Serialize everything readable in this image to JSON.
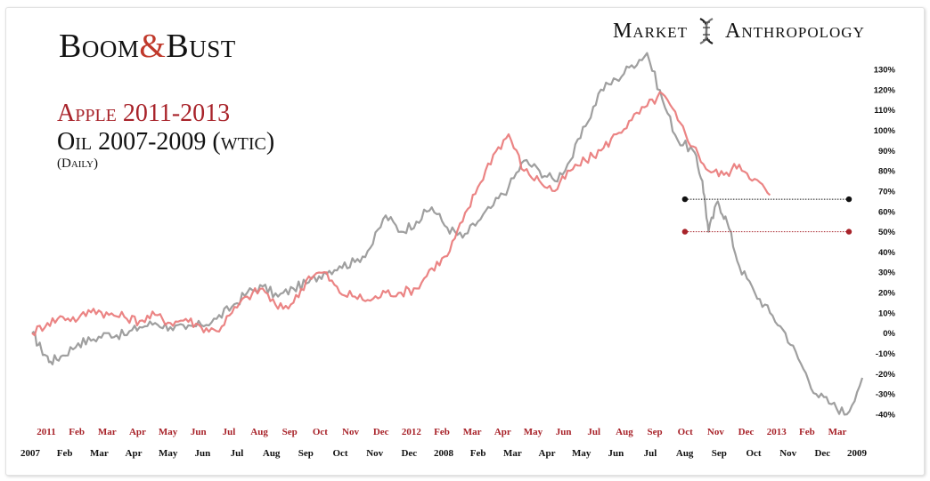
{
  "header": {
    "title_part1": "Boom",
    "title_amp": "&",
    "title_part2": "Bust",
    "brand_left": "Market",
    "brand_right": "Anthropology",
    "brand_icon": "dna-helix-icon",
    "line1": "Apple 2011-2013",
    "line2": "Oil 2007-2009 (wtic)",
    "line3": "(Daily)"
  },
  "chart_data": {
    "type": "line",
    "y_axis": {
      "ylim": [
        -40,
        130
      ],
      "unit": "%",
      "ticks": [
        "130%",
        "120%",
        "110%",
        "100%",
        "90%",
        "80%",
        "70%",
        "60%",
        "50%",
        "40%",
        "30%",
        "20%",
        "10%",
        "0%",
        "-10%",
        "-20%",
        "-30%",
        "-40%"
      ],
      "side": "right"
    },
    "x_axis_apple": [
      "2011",
      "Feb",
      "Mar",
      "Apr",
      "May",
      "Jun",
      "Jul",
      "Aug",
      "Sep",
      "Oct",
      "Nov",
      "Dec",
      "2012",
      "Feb",
      "Mar",
      "Apr",
      "May",
      "Jun",
      "Jul",
      "Aug",
      "Sep",
      "Oct",
      "Nov",
      "Dec",
      "2013",
      "Feb",
      "Mar"
    ],
    "x_axis_oil": [
      "2007",
      "Feb",
      "Mar",
      "Apr",
      "May",
      "Jun",
      "Jul",
      "Aug",
      "Sep",
      "Oct",
      "Nov",
      "Dec",
      "2008",
      "Feb",
      "Mar",
      "Apr",
      "May",
      "Jun",
      "Jul",
      "Aug",
      "Sep",
      "Oct",
      "Nov",
      "Dec",
      "2009"
    ],
    "series": [
      {
        "color": "#9a9a9a",
        "points": [
          [
            0,
            0
          ],
          [
            0.3,
            -8
          ],
          [
            0.6,
            -14
          ],
          [
            1,
            -11
          ],
          [
            1.5,
            -5
          ],
          [
            2,
            -3
          ],
          [
            2.5,
            0
          ],
          [
            3,
            -1
          ],
          [
            3.5,
            3
          ],
          [
            4,
            5
          ],
          [
            4.5,
            3
          ],
          [
            5,
            2
          ],
          [
            5.5,
            4
          ],
          [
            6,
            7
          ],
          [
            6.5,
            13
          ],
          [
            7,
            20
          ],
          [
            7.5,
            23
          ],
          [
            8,
            18
          ],
          [
            8.5,
            22
          ],
          [
            9,
            25
          ],
          [
            9.5,
            30
          ],
          [
            10,
            33
          ],
          [
            10.5,
            35
          ],
          [
            11,
            42
          ],
          [
            11.5,
            58
          ],
          [
            12,
            50
          ],
          [
            12.5,
            55
          ],
          [
            13,
            62
          ],
          [
            13.5,
            52
          ],
          [
            14,
            47
          ],
          [
            14.5,
            55
          ],
          [
            15,
            63
          ],
          [
            15.5,
            72
          ],
          [
            16,
            85
          ],
          [
            16.5,
            80
          ],
          [
            17,
            75
          ],
          [
            17.5,
            85
          ],
          [
            18,
            102
          ],
          [
            18.5,
            120
          ],
          [
            19,
            125
          ],
          [
            19.5,
            132
          ],
          [
            20,
            138
          ],
          [
            20.5,
            115
          ],
          [
            21,
            95
          ],
          [
            21.5,
            90
          ],
          [
            21.8,
            75
          ],
          [
            22,
            50
          ],
          [
            22.3,
            65
          ],
          [
            22.6,
            55
          ],
          [
            23,
            33
          ],
          [
            23.5,
            20
          ],
          [
            24,
            10
          ],
          [
            24.5,
            0
          ],
          [
            25,
            -15
          ],
          [
            25.5,
            -30
          ],
          [
            26,
            -35
          ],
          [
            26.5,
            -40
          ],
          [
            27,
            -22
          ]
        ]
      },
      {
        "color": "#ea7d7d",
        "points": [
          [
            0,
            0
          ],
          [
            0.5,
            5
          ],
          [
            1,
            8
          ],
          [
            1.5,
            7
          ],
          [
            2,
            12
          ],
          [
            2.5,
            9
          ],
          [
            3,
            8
          ],
          [
            3.5,
            6
          ],
          [
            4,
            9
          ],
          [
            4.5,
            5
          ],
          [
            5,
            7
          ],
          [
            5.5,
            3
          ],
          [
            6,
            1
          ],
          [
            6.5,
            10
          ],
          [
            7,
            18
          ],
          [
            7.5,
            22
          ],
          [
            8,
            12
          ],
          [
            8.5,
            15
          ],
          [
            9,
            28
          ],
          [
            9.5,
            30
          ],
          [
            10,
            20
          ],
          [
            10.5,
            18
          ],
          [
            11,
            16
          ],
          [
            11.5,
            20
          ],
          [
            12,
            20
          ],
          [
            12.5,
            22
          ],
          [
            13,
            32
          ],
          [
            13.5,
            38
          ],
          [
            14,
            55
          ],
          [
            14.5,
            72
          ],
          [
            15,
            88
          ],
          [
            15.5,
            98
          ],
          [
            16,
            80
          ],
          [
            16.5,
            75
          ],
          [
            17,
            70
          ],
          [
            17.5,
            80
          ],
          [
            18,
            85
          ],
          [
            18.5,
            90
          ],
          [
            19,
            98
          ],
          [
            19.5,
            105
          ],
          [
            20,
            112
          ],
          [
            20.5,
            118
          ],
          [
            21,
            105
          ],
          [
            21.5,
            92
          ],
          [
            22,
            80
          ],
          [
            22.5,
            78
          ],
          [
            23,
            83
          ],
          [
            23.5,
            76
          ],
          [
            24,
            68
          ]
        ]
      }
    ],
    "hlines": [
      {
        "value": 66,
        "x_from": 21,
        "x_to": 27,
        "color": "#111111"
      },
      {
        "value": 50,
        "x_from": 21,
        "x_to": 27,
        "color": "#a8232a"
      }
    ]
  }
}
